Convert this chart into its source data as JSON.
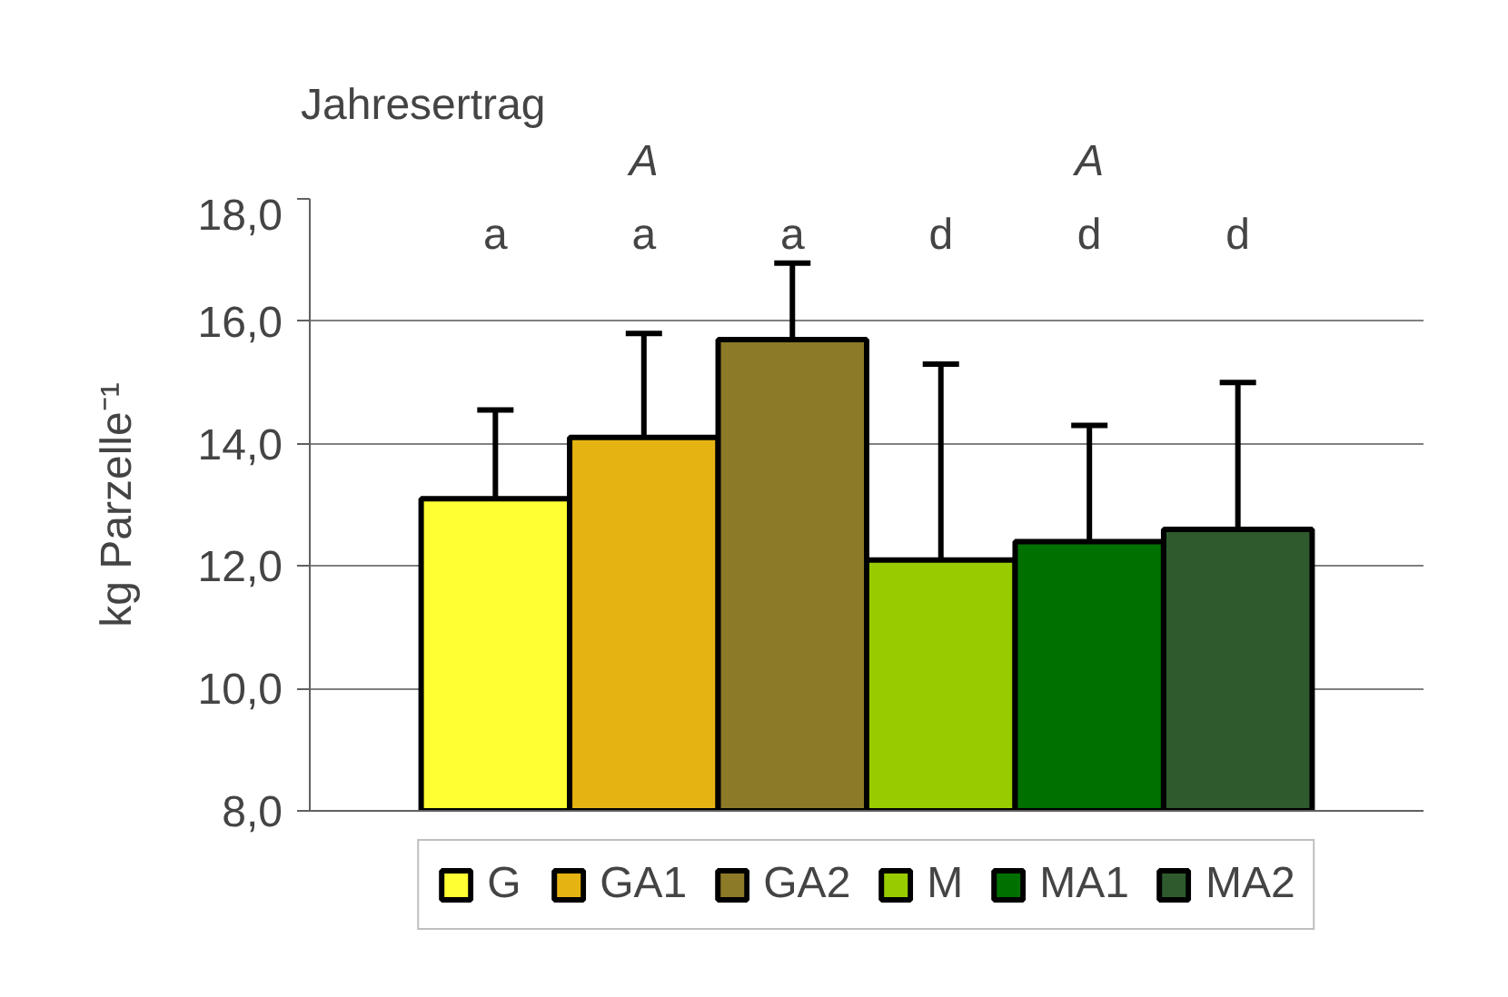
{
  "chart_data": {
    "type": "bar",
    "title": "Jahresertrag",
    "ylabel": "kg Parzelle⁻¹",
    "categories": [
      null
    ],
    "series": [
      {
        "name": "G",
        "color": "#ffff33",
        "values": [
          13.1
        ],
        "errors": [
          1.45
        ]
      },
      {
        "name": "GA1",
        "color": "#e6b412",
        "values": [
          14.1
        ],
        "errors": [
          1.7
        ]
      },
      {
        "name": "GA2",
        "color": "#8c7a28",
        "values": [
          15.7
        ],
        "errors": [
          1.25
        ]
      },
      {
        "name": "M",
        "color": "#99cc00",
        "values": [
          12.1
        ],
        "errors": [
          3.2
        ]
      },
      {
        "name": "MA1",
        "color": "#007000",
        "values": [
          12.4
        ],
        "errors": [
          1.9
        ]
      },
      {
        "name": "MA2",
        "color": "#2e5a2e",
        "values": [
          12.6
        ],
        "errors": [
          2.4
        ]
      }
    ],
    "ylim": [
      8,
      18
    ],
    "yticks": [
      {
        "value": 8,
        "label": "8,0"
      },
      {
        "value": 10,
        "label": "10,0"
      },
      {
        "value": 12,
        "label": "12,0"
      },
      {
        "value": 14,
        "label": "14,0"
      },
      {
        "value": 16,
        "label": "16,0"
      },
      {
        "value": 18,
        "label": "18,0"
      }
    ],
    "grid": "y",
    "legend": "bottom",
    "annotations": [
      "A",
      "A",
      "a",
      "a",
      "a",
      "d",
      "d",
      "d"
    ]
  }
}
